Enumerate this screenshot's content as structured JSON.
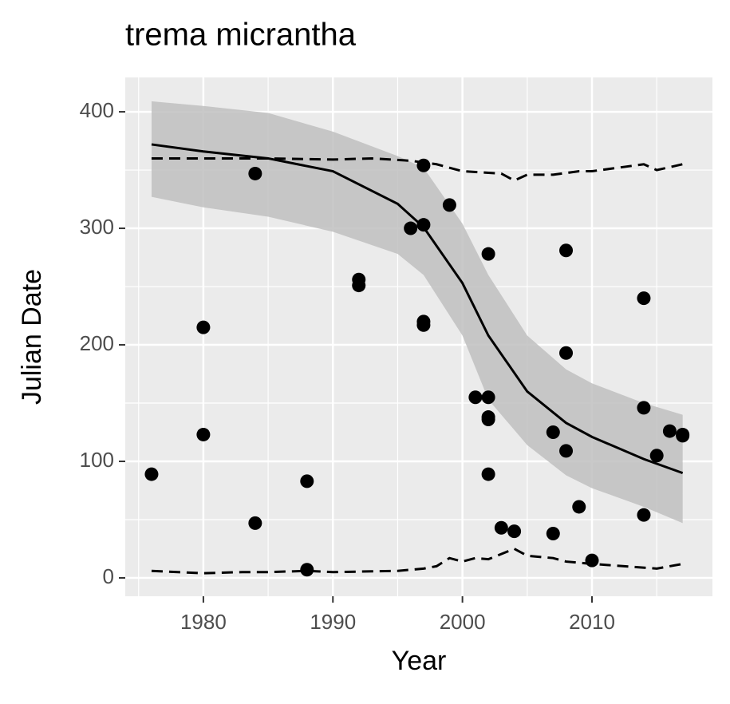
{
  "chart_data": {
    "type": "scatter",
    "title": "trema micrantha",
    "x_label": "Year",
    "y_label": "Julian Date",
    "x": [
      1976,
      1980,
      1980,
      1984,
      1984,
      1988,
      1988,
      1992,
      1992,
      1996,
      1997,
      1997,
      1997,
      1997,
      1999,
      2001,
      2002,
      2002,
      2002,
      2002,
      2002,
      2003,
      2004,
      2007,
      2007,
      2008,
      2008,
      2008,
      2009,
      2010,
      2014,
      2014,
      2014,
      2015,
      2016,
      2017,
      2017
    ],
    "values": [
      89,
      215,
      123,
      347,
      47,
      83,
      7,
      256,
      251,
      300,
      354,
      303,
      220,
      217,
      320,
      155,
      155,
      138,
      136,
      278,
      89,
      43,
      40,
      125,
      38,
      281,
      193,
      109,
      61,
      15,
      240,
      146,
      54,
      105,
      126,
      123,
      122
    ],
    "color": "#000000",
    "fit": {
      "x": [
        1976,
        1980,
        1985,
        1990,
        1995,
        1997,
        2000,
        2002,
        2005,
        2008,
        2010,
        2014,
        2017
      ],
      "values": [
        372,
        366,
        360,
        349,
        321,
        301,
        253,
        208,
        160,
        133,
        121,
        102,
        90
      ],
      "upper": [
        409,
        405,
        399,
        383,
        362,
        352,
        304,
        260,
        208,
        179,
        167,
        150,
        140
      ],
      "lower": [
        327,
        318,
        310,
        297,
        278,
        260,
        208,
        153,
        114,
        88,
        77,
        61,
        47
      ],
      "color": "#000000",
      "band_color": "#bfbfbf"
    },
    "quantiles": [
      {
        "x": [
          1976,
          1980,
          1985,
          1990,
          1993,
          1996,
          1998,
          2000,
          2003,
          2004,
          2005,
          2007,
          2009,
          2010,
          2012,
          2014,
          2015,
          2017
        ],
        "values": [
          360,
          360,
          360,
          359,
          360,
          358,
          355,
          349,
          347,
          341,
          346,
          346,
          349,
          349,
          352,
          355,
          350,
          355
        ]
      },
      {
        "x": [
          1976,
          1980,
          1983,
          1985,
          1988,
          1990,
          1995,
          1997,
          1998,
          1999,
          2000,
          2001,
          2002,
          2004,
          2005,
          2007,
          2008,
          2010,
          2015,
          2017
        ],
        "values": [
          6,
          4,
          5,
          5,
          6,
          5,
          6,
          8,
          10,
          17,
          14,
          17,
          16,
          25,
          19,
          17,
          14,
          12,
          8,
          12
        ]
      }
    ],
    "xlim": [
      1973.97,
      2019.3
    ],
    "ylim": [
      -15.75,
      429.5
    ],
    "xticks": [
      1980,
      1990,
      2000,
      2010
    ],
    "yticks": [
      0,
      100,
      200,
      300,
      400
    ],
    "grid": true
  }
}
